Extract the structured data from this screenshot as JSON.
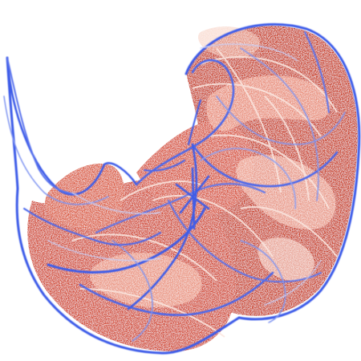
{
  "image": {
    "subject": "strange-attractor-fractal",
    "colors": {
      "background": "#ffffff",
      "fill_dark": "#c0301f",
      "fill_mid": "#e0553a",
      "fill_light": "#f2a48d",
      "fill_pale": "#fbe3dc",
      "outline_blue": "#3f5ee8",
      "outline_blue_light": "#8c9ff2",
      "outline_blue_pale": "#c7d0fa"
    }
  }
}
